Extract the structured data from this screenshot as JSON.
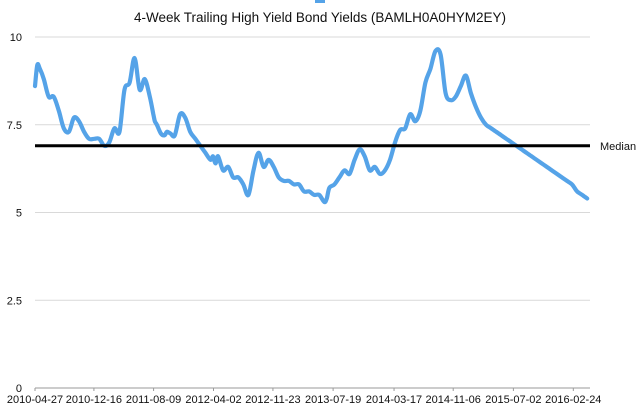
{
  "chart_data": {
    "type": "line",
    "title": "4-Week Trailing High Yield Bond Yields (BAMLH0A0HYM2EY)",
    "xlabel": "",
    "ylabel": "",
    "ylim": [
      0,
      10
    ],
    "yticks": [
      "0",
      "2.5",
      "5",
      "7.5",
      "10"
    ],
    "x_tick_labels": [
      "2010-04-27",
      "2010-12-16",
      "2011-08-09",
      "2012-04-02",
      "2012-11-23",
      "2013-07-19",
      "2014-03-17",
      "2014-11-06",
      "2015-07-02",
      "2016-02-24"
    ],
    "x_range": [
      "2010-04-27",
      "2016-04-30"
    ],
    "grid": true,
    "colors": {
      "series": "#55a3e8",
      "median": "#000000"
    },
    "series": [
      {
        "x": [
          "2010-04-27",
          "2010-05-06",
          "2010-05-16",
          "2010-06-01",
          "2010-06-20",
          "2010-07-10",
          "2010-07-30",
          "2010-08-19",
          "2010-09-08",
          "2010-09-28",
          "2010-10-18",
          "2010-11-07",
          "2010-11-27",
          "2010-12-17",
          "2011-01-06",
          "2011-01-26",
          "2011-02-15",
          "2011-03-07",
          "2011-03-27",
          "2011-04-16",
          "2011-05-06",
          "2011-05-26",
          "2011-06-15",
          "2011-07-05",
          "2011-07-25",
          "2011-08-08",
          "2011-08-14",
          "2011-08-22",
          "2011-09-07",
          "2011-09-21",
          "2011-10-01",
          "2011-10-15",
          "2011-11-01",
          "2011-11-22",
          "2011-12-12",
          "2012-01-01",
          "2012-01-21",
          "2012-02-10",
          "2012-03-01",
          "2012-03-21",
          "2012-03-31",
          "2012-04-10",
          "2012-04-20",
          "2012-05-10",
          "2012-05-30",
          "2012-06-19",
          "2012-07-09",
          "2012-07-29",
          "2012-08-18",
          "2012-09-07",
          "2012-09-27",
          "2012-10-17",
          "2012-11-06",
          "2012-11-26",
          "2012-12-16",
          "2013-01-05",
          "2013-01-25",
          "2013-02-14",
          "2013-03-06",
          "2013-03-26",
          "2013-04-15",
          "2013-05-05",
          "2013-05-25",
          "2013-06-14",
          "2013-06-24",
          "2013-07-04",
          "2013-07-24",
          "2013-08-13",
          "2013-09-02",
          "2013-09-22",
          "2013-10-12",
          "2013-11-01",
          "2013-11-21",
          "2013-12-11",
          "2013-12-31",
          "2014-01-20",
          "2014-02-09",
          "2014-03-01",
          "2014-03-21",
          "2014-04-10",
          "2014-04-30",
          "2014-05-20",
          "2014-06-09",
          "2014-06-29",
          "2014-07-19",
          "2014-08-08",
          "2014-08-28",
          "2014-09-17",
          "2014-10-07",
          "2014-10-27",
          "2014-11-16",
          "2014-12-06",
          "2014-12-26",
          "2015-01-15",
          "2015-02-04",
          "2015-02-24",
          "2015-03-16",
          "2015-04-05",
          "2015-04-25",
          "2015-05-15",
          "2015-06-04",
          "2015-06-24",
          "2015-07-14",
          "2015-08-03",
          "2015-08-23",
          "2015-09-12",
          "2015-10-02",
          "2015-10-22",
          "2015-11-11",
          "2015-12-01",
          "2015-12-21",
          "2016-01-10",
          "2016-01-30",
          "2016-02-19",
          "2016-02-29",
          "2016-03-10",
          "2016-03-30",
          "2016-04-19"
        ],
        "values": [
          8.6,
          9.2,
          9.1,
          8.8,
          8.3,
          8.3,
          7.9,
          7.4,
          7.3,
          7.7,
          7.6,
          7.3,
          7.1,
          7.1,
          7.1,
          6.9,
          7.0,
          7.4,
          7.3,
          8.5,
          8.7,
          9.4,
          8.5,
          8.8,
          8.3,
          7.8,
          7.6,
          7.5,
          7.25,
          7.2,
          7.3,
          7.25,
          7.2,
          7.8,
          7.7,
          7.3,
          7.1,
          6.9,
          6.7,
          6.5,
          6.6,
          6.4,
          6.6,
          6.2,
          6.3,
          6.0,
          6.0,
          5.8,
          5.5,
          6.2,
          6.7,
          6.3,
          6.5,
          6.3,
          6.0,
          5.9,
          5.9,
          5.8,
          5.8,
          5.6,
          5.6,
          5.5,
          5.5,
          5.3,
          5.4,
          5.7,
          5.8,
          6.0,
          6.2,
          6.1,
          6.5,
          6.8,
          6.6,
          6.2,
          6.3,
          6.1,
          6.2,
          6.5,
          7.0,
          7.35,
          7.4,
          7.8,
          7.6,
          7.9,
          8.7,
          9.1,
          9.6,
          9.5,
          8.4,
          8.2,
          8.3,
          8.6,
          8.9,
          8.4,
          8.0,
          7.7,
          7.5,
          7.4,
          7.3,
          7.2,
          7.1,
          7.0,
          6.9,
          6.8,
          6.7,
          6.6,
          6.5,
          6.4,
          6.3,
          6.2,
          6.1,
          6.0,
          5.9,
          5.8,
          5.7,
          5.6,
          5.5,
          5.4
        ]
      }
    ],
    "reference_line": {
      "label": "Median",
      "value": 6.9
    }
  }
}
